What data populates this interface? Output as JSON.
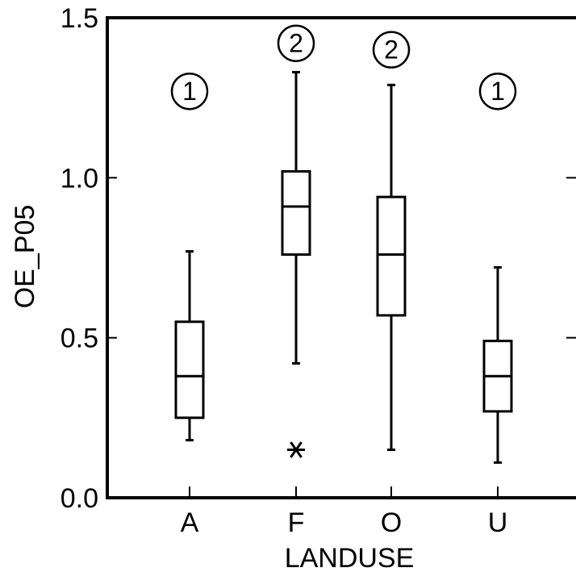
{
  "chart_data": {
    "type": "box",
    "xlabel": "LANDUSE",
    "ylabel": "OE_P05",
    "ylim": [
      0.0,
      1.5
    ],
    "yticks": [
      {
        "value": 0.0,
        "label": "0.0"
      },
      {
        "value": 0.5,
        "label": "0.5"
      },
      {
        "value": 1.0,
        "label": "1.0"
      },
      {
        "value": 1.5,
        "label": "1.5"
      }
    ],
    "categories": [
      "A",
      "F",
      "O",
      "U"
    ],
    "boxes": [
      {
        "category": "A",
        "whisker_low": 0.18,
        "q1": 0.25,
        "median": 0.38,
        "q3": 0.55,
        "whisker_high": 0.77,
        "outliers": [],
        "group_label": "1",
        "group_label_y": 1.27
      },
      {
        "category": "F",
        "whisker_low": 0.42,
        "q1": 0.76,
        "median": 0.91,
        "q3": 1.02,
        "whisker_high": 1.33,
        "outliers": [
          0.15
        ],
        "group_label": "2",
        "group_label_y": 1.42
      },
      {
        "category": "O",
        "whisker_low": 0.15,
        "q1": 0.57,
        "median": 0.76,
        "q3": 0.94,
        "whisker_high": 1.29,
        "outliers": [],
        "group_label": "2",
        "group_label_y": 1.4
      },
      {
        "category": "U",
        "whisker_low": 0.11,
        "q1": 0.27,
        "median": 0.38,
        "q3": 0.49,
        "whisker_high": 0.72,
        "outliers": [],
        "group_label": "1",
        "group_label_y": 1.27
      }
    ],
    "grid": false,
    "legend": "none"
  }
}
